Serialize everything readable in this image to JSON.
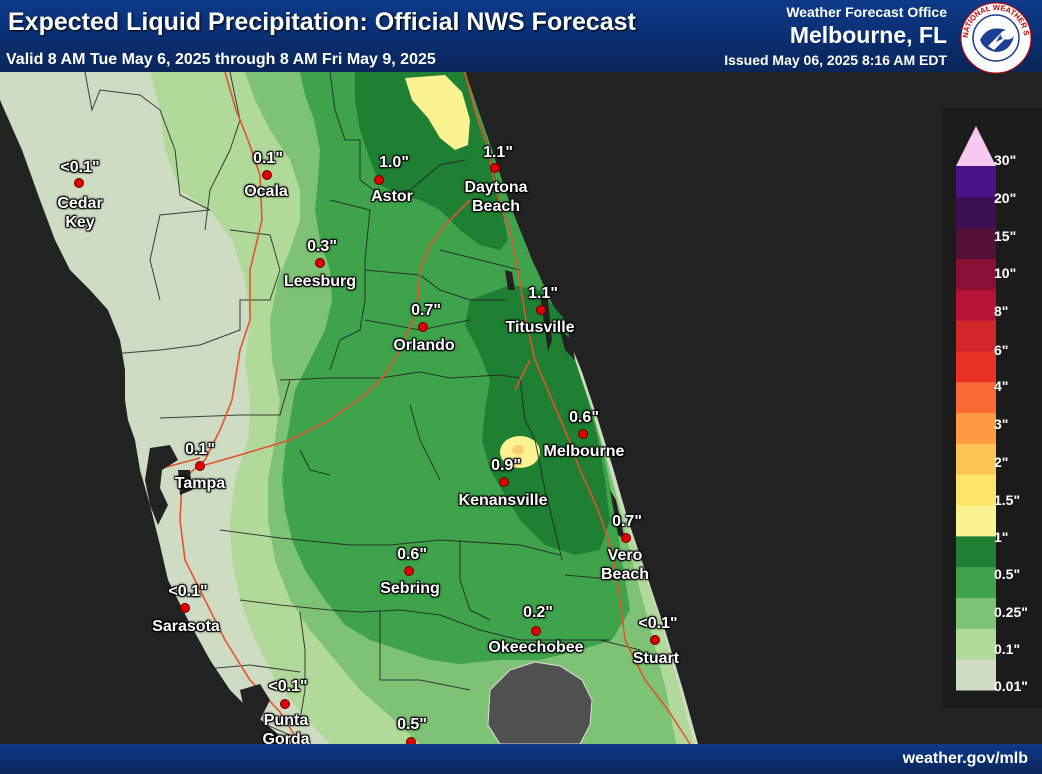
{
  "header": {
    "title": "Expected Liquid Precipitation: Official NWS Forecast",
    "valid": "Valid 8 AM Tue May 6, 2025 through 8 AM Fri May 9, 2025",
    "office_label": "Weather Forecast Office",
    "office_name": "Melbourne, FL",
    "issued": "Issued May 06, 2025 8:16 AM EDT",
    "logo_text": "NATIONAL WEATHER SERVICE"
  },
  "footer": {
    "url": "weather.gov/mlb"
  },
  "legend": {
    "colors": [
      "#cfdcc4",
      "#b1d99a",
      "#7ec375",
      "#3fa34c",
      "#1f7f33",
      "#fbf391",
      "#fde667",
      "#fcc453",
      "#fd9a42",
      "#fa6a36",
      "#e93127",
      "#d1272a",
      "#b51335",
      "#890f34",
      "#560f39",
      "#3c0f53",
      "#4a1287",
      "#f7c9f1"
    ],
    "labels": [
      "0.01\"",
      "0.1\"",
      "0.25\"",
      "0.5\"",
      "1\"",
      "1.5\"",
      "2\"",
      "3\"",
      "4\"",
      "6\"",
      "8\"",
      "10\"",
      "15\"",
      "20\"",
      "30\""
    ]
  },
  "cities": [
    {
      "name": "Cedar\nKey",
      "value": "<0.1\""
    },
    {
      "name": "Ocala",
      "value": "0.1\""
    },
    {
      "name": "Astor",
      "value": "1.0\""
    },
    {
      "name": "Daytona\nBeach",
      "value": "1.1\""
    },
    {
      "name": "Leesburg",
      "value": "0.3\""
    },
    {
      "name": "Orlando",
      "value": "0.7\""
    },
    {
      "name": "Titusville",
      "value": "1.1\""
    },
    {
      "name": "Melbourne",
      "value": "0.6\""
    },
    {
      "name": "Kenansville",
      "value": "0.9\""
    },
    {
      "name": "Tampa",
      "value": "0.1\""
    },
    {
      "name": "Vero\nBeach",
      "value": "0.7\""
    },
    {
      "name": "Sebring",
      "value": "0.6\""
    },
    {
      "name": "Sarasota",
      "value": "<0.1\""
    },
    {
      "name": "Okeechobee",
      "value": "0.2\""
    },
    {
      "name": "Stuart",
      "value": "<0.1\""
    },
    {
      "name": "Punta\nGorda",
      "value": "<0.1\""
    },
    {
      "name": "",
      "value": "0.5\""
    }
  ]
}
